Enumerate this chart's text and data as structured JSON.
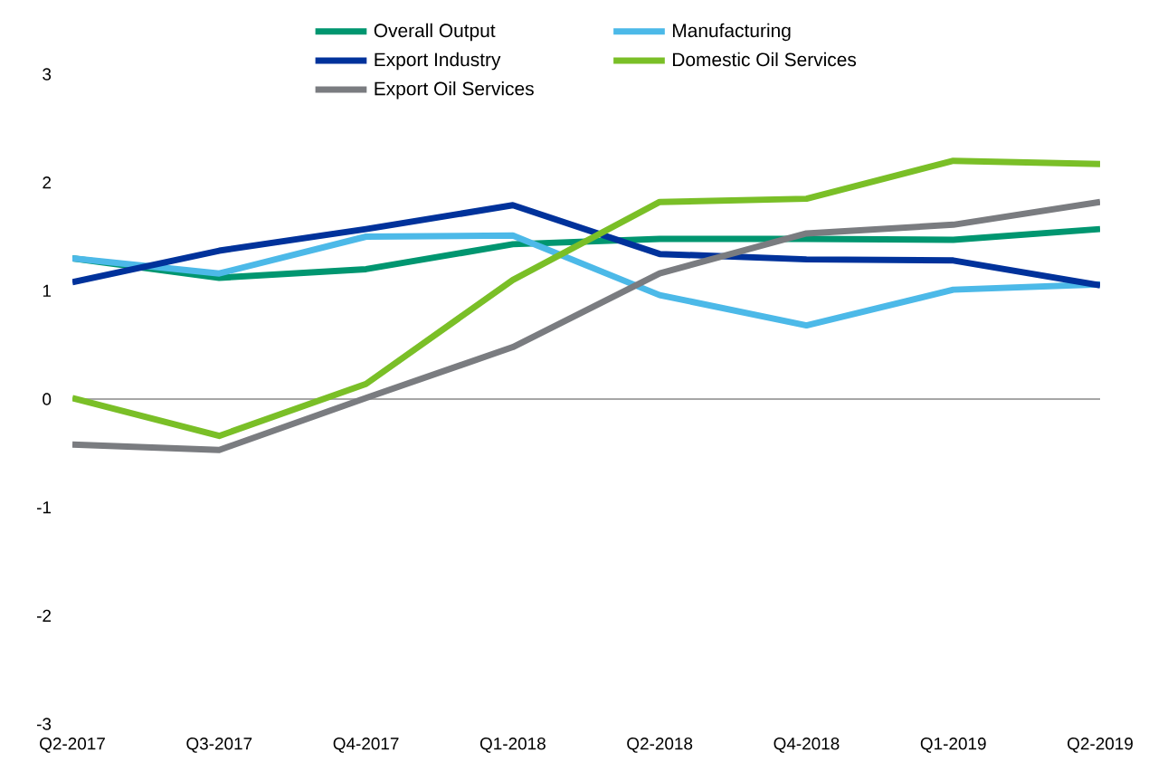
{
  "chart_data": {
    "type": "line",
    "categories": [
      "Q2-2017",
      "Q3-2017",
      "Q4-2017",
      "Q1-2018",
      "Q2-2018",
      "Q4-2018",
      "Q1-2019",
      "Q2-2019"
    ],
    "series": [
      {
        "name": "Overall Output",
        "color": "#009670",
        "values": [
          1.3,
          1.12,
          1.2,
          1.43,
          1.48,
          1.48,
          1.47,
          1.57
        ]
      },
      {
        "name": "Manufacturing",
        "color": "#4cb9e8",
        "values": [
          1.3,
          1.16,
          1.5,
          1.51,
          0.96,
          0.68,
          1.01,
          1.06
        ]
      },
      {
        "name": "Export Industry",
        "color": "#00329b",
        "values": [
          1.08,
          1.37,
          1.57,
          1.79,
          1.34,
          1.29,
          1.28,
          1.05
        ]
      },
      {
        "name": "Domestic Oil Services",
        "color": "#7abf27",
        "values": [
          0.01,
          -0.34,
          0.14,
          1.1,
          1.82,
          1.85,
          2.2,
          2.17
        ]
      },
      {
        "name": "Export Oil Services",
        "color": "#7a7c80",
        "values": [
          -0.42,
          -0.47,
          0.01,
          0.48,
          1.16,
          1.53,
          1.61,
          1.82
        ]
      }
    ],
    "ylim": [
      -3,
      3
    ],
    "yticks": [
      -3,
      -2,
      -1,
      0,
      1,
      2,
      3
    ],
    "ref_lines": [
      {
        "axis": "y",
        "value": 0,
        "color": "#a6a6a6"
      }
    ],
    "legend": "top",
    "grid": false,
    "marker": "none",
    "line_style": "solid"
  }
}
